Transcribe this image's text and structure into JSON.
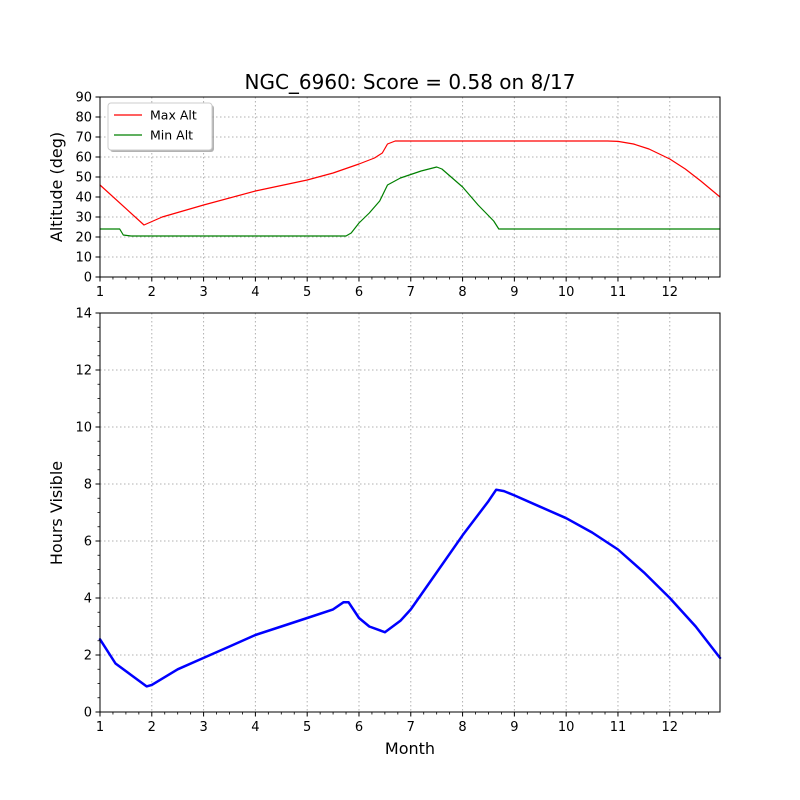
{
  "chart_data": [
    {
      "type": "line",
      "title": "NGC_6960: Score = 0.58 on 8/17",
      "xlabel": "",
      "ylabel": "Altitude (deg)",
      "xlim": [
        1,
        12.97
      ],
      "ylim": [
        0,
        90
      ],
      "xticks": [
        1,
        2,
        3,
        4,
        5,
        6,
        7,
        8,
        9,
        10,
        11,
        12
      ],
      "yticks": [
        0,
        10,
        20,
        30,
        40,
        50,
        60,
        70,
        80,
        90
      ],
      "grid": true,
      "legend": "top-left",
      "series": [
        {
          "name": "Max Alt",
          "color": "#ff0000",
          "x": [
            1.0,
            1.85,
            2.2,
            3.0,
            4.0,
            5.0,
            5.5,
            6.0,
            6.3,
            6.45,
            6.55,
            6.7,
            7.0,
            8.0,
            9.0,
            10.0,
            10.8,
            11.0,
            11.3,
            11.6,
            12.0,
            12.3,
            12.6,
            12.97
          ],
          "y": [
            46,
            26,
            30,
            36,
            43,
            48.5,
            52,
            56.5,
            59.5,
            62,
            66.5,
            68,
            68,
            68,
            68,
            68,
            68,
            67.8,
            66.5,
            64,
            59,
            54,
            48,
            40
          ]
        },
        {
          "name": "Min Alt",
          "color": "#008000",
          "x": [
            1.0,
            1.38,
            1.45,
            1.6,
            2.0,
            3.0,
            4.0,
            5.0,
            5.5,
            5.75,
            5.85,
            6.0,
            6.2,
            6.4,
            6.55,
            6.8,
            7.2,
            7.5,
            7.6,
            8.0,
            8.3,
            8.6,
            8.7,
            9.0,
            10.0,
            11.0,
            12.0,
            12.97
          ],
          "y": [
            24,
            24,
            21,
            20.5,
            20.5,
            20.5,
            20.5,
            20.5,
            20.5,
            20.5,
            22,
            27,
            32,
            38,
            46,
            49.5,
            53,
            55,
            54,
            45,
            36,
            28,
            24,
            24,
            24,
            24,
            24,
            24
          ]
        }
      ]
    },
    {
      "type": "line",
      "title": "",
      "xlabel": "Month",
      "ylabel": "Hours Visible",
      "xlim": [
        1,
        12.97
      ],
      "ylim": [
        0,
        14
      ],
      "xticks": [
        1,
        2,
        3,
        4,
        5,
        6,
        7,
        8,
        9,
        10,
        11,
        12
      ],
      "yticks": [
        0,
        2,
        4,
        6,
        8,
        10,
        12,
        14
      ],
      "grid": true,
      "series": [
        {
          "color": "#0000ff",
          "x": [
            1.0,
            1.3,
            1.6,
            1.9,
            2.0,
            2.5,
            3.0,
            3.5,
            4.0,
            4.5,
            5.0,
            5.5,
            5.7,
            5.8,
            6.0,
            6.2,
            6.5,
            6.8,
            7.0,
            7.5,
            8.0,
            8.5,
            8.65,
            8.8,
            9.0,
            9.5,
            10.0,
            10.5,
            11.0,
            11.5,
            12.0,
            12.5,
            12.97
          ],
          "y": [
            2.55,
            1.7,
            1.3,
            0.9,
            0.95,
            1.5,
            1.9,
            2.3,
            2.7,
            3.0,
            3.3,
            3.6,
            3.85,
            3.85,
            3.3,
            3.0,
            2.8,
            3.2,
            3.6,
            4.9,
            6.2,
            7.4,
            7.8,
            7.75,
            7.6,
            7.2,
            6.8,
            6.3,
            5.7,
            4.9,
            4.0,
            3.0,
            1.9
          ]
        }
      ]
    }
  ]
}
